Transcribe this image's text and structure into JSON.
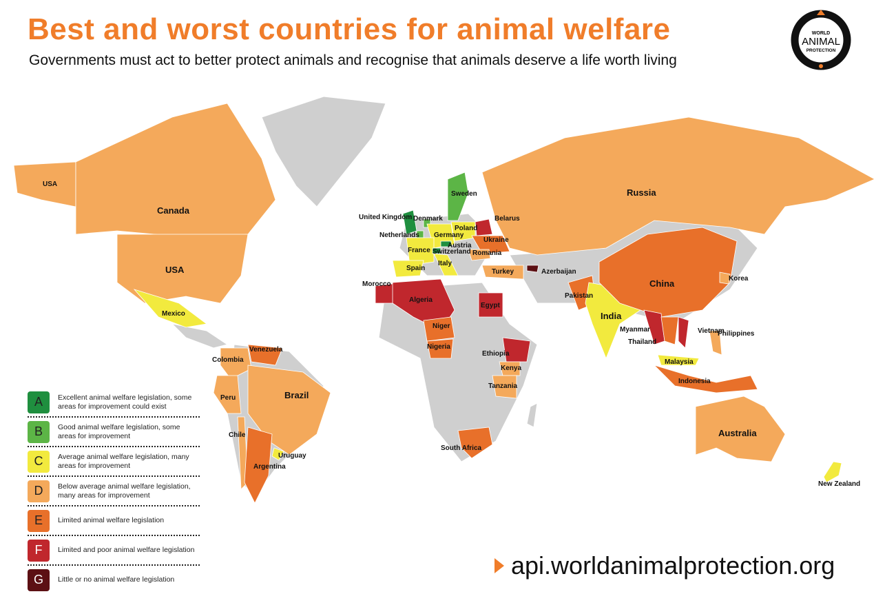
{
  "header": {
    "title": "Best and worst countries for animal welfare",
    "subtitle": "Governments must act to better protect animals and recognise that animals deserve a life worth living"
  },
  "logo": {
    "line1": "WORLD",
    "line2": "ANIMAL",
    "line3": "PROTECTION"
  },
  "colors": {
    "title": "#f07d2a",
    "no_data": "#cfcfcf",
    "A": "#1f8f3f",
    "B": "#5cb546",
    "C": "#f2ea3e",
    "D": "#f4a95b",
    "E": "#e8702a",
    "F": "#c0272d",
    "G": "#5c1014"
  },
  "legend": [
    {
      "grade": "A",
      "text": "Excellent animal welfare legislation, some areas for improvement could exist"
    },
    {
      "grade": "B",
      "text": "Good animal welfare legislation, some areas for improvement"
    },
    {
      "grade": "C",
      "text": "Average animal welfare legislation, many areas for improvement"
    },
    {
      "grade": "D",
      "text": "Below average animal welfare legislation, many areas for improvement"
    },
    {
      "grade": "E",
      "text": "Limited animal welfare legislation"
    },
    {
      "grade": "F",
      "text": "Limited and poor animal welfare legislation"
    },
    {
      "grade": "G",
      "text": "Little or no animal welfare legislation"
    }
  ],
  "countries": [
    {
      "name": "USA",
      "grade": "D"
    },
    {
      "name": "Canada",
      "grade": "D"
    },
    {
      "name": "USA",
      "grade": "D"
    },
    {
      "name": "Mexico",
      "grade": "C"
    },
    {
      "name": "Venezuela",
      "grade": "E"
    },
    {
      "name": "Colombia",
      "grade": "D"
    },
    {
      "name": "Peru",
      "grade": "D"
    },
    {
      "name": "Brazil",
      "grade": "D"
    },
    {
      "name": "Chile",
      "grade": "D"
    },
    {
      "name": "Argentina",
      "grade": "E"
    },
    {
      "name": "Uruguay",
      "grade": "C"
    },
    {
      "name": "United Kingdom",
      "grade": "A"
    },
    {
      "name": "Sweden",
      "grade": "B"
    },
    {
      "name": "Denmark",
      "grade": "B"
    },
    {
      "name": "Netherlands",
      "grade": "B"
    },
    {
      "name": "Germany",
      "grade": "C"
    },
    {
      "name": "Poland",
      "grade": "C"
    },
    {
      "name": "Belarus",
      "grade": "F"
    },
    {
      "name": "Ukraine",
      "grade": "E"
    },
    {
      "name": "France",
      "grade": "C"
    },
    {
      "name": "Austria",
      "grade": "A"
    },
    {
      "name": "Switzerland",
      "grade": "A"
    },
    {
      "name": "Romania",
      "grade": "D"
    },
    {
      "name": "Spain",
      "grade": "C"
    },
    {
      "name": "Italy",
      "grade": "C"
    },
    {
      "name": "Turkey",
      "grade": "D"
    },
    {
      "name": "Azerbaijan",
      "grade": "G"
    },
    {
      "name": "Russia",
      "grade": "D"
    },
    {
      "name": "Morocco",
      "grade": "F"
    },
    {
      "name": "Algeria",
      "grade": "F"
    },
    {
      "name": "Egypt",
      "grade": "F"
    },
    {
      "name": "Niger",
      "grade": "E"
    },
    {
      "name": "Nigeria",
      "grade": "E"
    },
    {
      "name": "Ethiopia",
      "grade": "F"
    },
    {
      "name": "Kenya",
      "grade": "D"
    },
    {
      "name": "Tanzania",
      "grade": "D"
    },
    {
      "name": "South Africa",
      "grade": "E"
    },
    {
      "name": "Pakistan",
      "grade": "E"
    },
    {
      "name": "India",
      "grade": "C"
    },
    {
      "name": "China",
      "grade": "E"
    },
    {
      "name": "Korea",
      "grade": "D"
    },
    {
      "name": "Myanmar",
      "grade": "F"
    },
    {
      "name": "Thailand",
      "grade": "E"
    },
    {
      "name": "Vietnam",
      "grade": "F"
    },
    {
      "name": "Philippines",
      "grade": "D"
    },
    {
      "name": "Malaysia",
      "grade": "C"
    },
    {
      "name": "Indonesia",
      "grade": "E"
    },
    {
      "name": "Australia",
      "grade": "D"
    },
    {
      "name": "New Zealand",
      "grade": "C"
    }
  ],
  "footer": {
    "url": "api.worldanimalprotection.org"
  }
}
